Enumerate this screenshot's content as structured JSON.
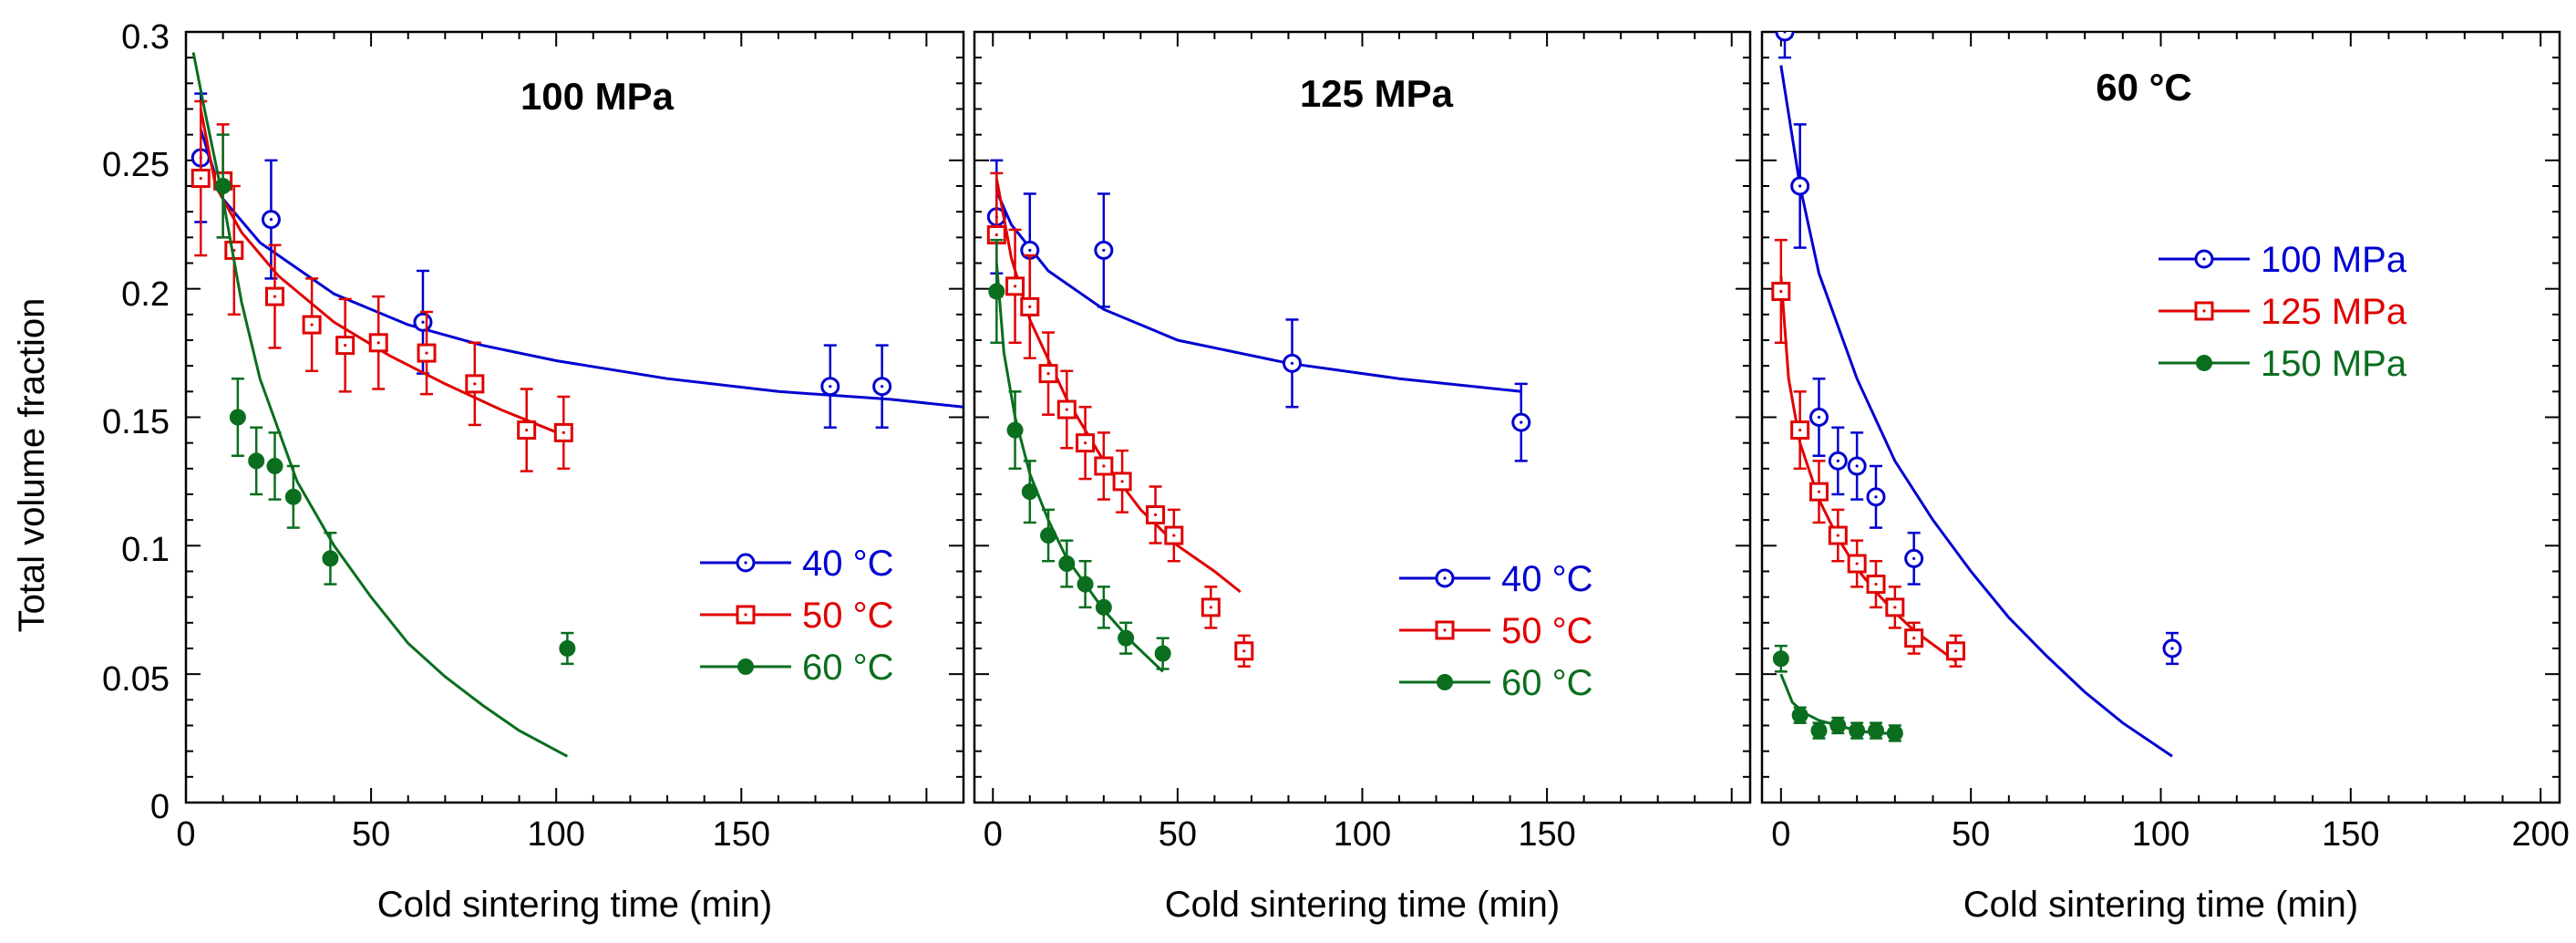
{
  "figure": {
    "ylabel": "Total volume fraction",
    "y_ticks": [
      "0",
      "0.05",
      "0.1",
      "0.15",
      "0.2",
      "0.25",
      "0.3"
    ]
  },
  "chart_data": [
    {
      "type": "scatter",
      "title": "100 MPa",
      "xlabel": "Cold sintering time (min)",
      "ylabel": "Total volume fraction",
      "xlim": [
        0,
        210
      ],
      "ylim": [
        0,
        0.3
      ],
      "x_ticks": [
        "0",
        "50",
        "100",
        "150"
      ],
      "x_tick_values": [
        0,
        50,
        100,
        150
      ],
      "legend": "lower-right",
      "series": [
        {
          "name": "40 °C",
          "color": "#0000d0",
          "marker": "open-circle",
          "points": [
            [
              4,
              0.251,
              0.025
            ],
            [
              23,
              0.227,
              0.023
            ],
            [
              64,
              0.187,
              0.02
            ],
            [
              174,
              0.162,
              0.016
            ],
            [
              188,
              0.162,
              0.016
            ]
          ],
          "fit": [
            [
              4,
              0.262
            ],
            [
              10,
              0.235
            ],
            [
              20,
              0.218
            ],
            [
              40,
              0.198
            ],
            [
              60,
              0.186
            ],
            [
              80,
              0.178
            ],
            [
              100,
              0.172
            ],
            [
              130,
              0.165
            ],
            [
              160,
              0.16
            ],
            [
              190,
              0.157
            ],
            [
              210,
              0.154
            ]
          ]
        },
        {
          "name": "50 °C",
          "color": "#e00000",
          "marker": "open-square",
          "points": [
            [
              4,
              0.243,
              0.03
            ],
            [
              10,
              0.242,
              0.022
            ],
            [
              13,
              0.215,
              0.025
            ],
            [
              24,
              0.197,
              0.02
            ],
            [
              34,
              0.186,
              0.018
            ],
            [
              43,
              0.178,
              0.018
            ],
            [
              52,
              0.179,
              0.018
            ],
            [
              65,
              0.175,
              0.016
            ],
            [
              78,
              0.163,
              0.016
            ],
            [
              92,
              0.145,
              0.016
            ],
            [
              102,
              0.144,
              0.014
            ]
          ],
          "fit": [
            [
              4,
              0.27
            ],
            [
              8,
              0.24
            ],
            [
              15,
              0.222
            ],
            [
              25,
              0.205
            ],
            [
              40,
              0.187
            ],
            [
              55,
              0.174
            ],
            [
              70,
              0.163
            ],
            [
              85,
              0.153
            ],
            [
              102,
              0.143
            ]
          ]
        },
        {
          "name": "60 °C",
          "color": "#0a6e1e",
          "marker": "filled-circle",
          "points": [
            [
              10,
              0.24,
              0.02
            ],
            [
              14,
              0.15,
              0.015
            ],
            [
              19,
              0.133,
              0.013
            ],
            [
              24,
              0.131,
              0.013
            ],
            [
              29,
              0.119,
              0.012
            ],
            [
              39,
              0.095,
              0.01
            ],
            [
              103,
              0.06,
              0.006
            ]
          ],
          "fit": [
            [
              2,
              0.292
            ],
            [
              5,
              0.27
            ],
            [
              10,
              0.235
            ],
            [
              15,
              0.195
            ],
            [
              20,
              0.165
            ],
            [
              30,
              0.125
            ],
            [
              40,
              0.1
            ],
            [
              50,
              0.08
            ],
            [
              60,
              0.062
            ],
            [
              70,
              0.049
            ],
            [
              80,
              0.038
            ],
            [
              90,
              0.028
            ],
            [
              103,
              0.018
            ]
          ]
        }
      ]
    },
    {
      "type": "scatter",
      "title": "125 MPa",
      "xlabel": "Cold sintering time (min)",
      "ylabel": "",
      "xlim": [
        -5,
        205
      ],
      "ylim": [
        0,
        0.3
      ],
      "x_ticks": [
        "0",
        "50",
        "100",
        "150"
      ],
      "x_tick_values": [
        0,
        50,
        100,
        150
      ],
      "legend": "lower-right",
      "series": [
        {
          "name": "40 °C",
          "color": "#0000d0",
          "marker": "open-circle",
          "points": [
            [
              1,
              0.228,
              0.022
            ],
            [
              10,
              0.215,
              0.022
            ],
            [
              30,
              0.215,
              0.022
            ],
            [
              81,
              0.171,
              0.017
            ],
            [
              143,
              0.148,
              0.015
            ]
          ],
          "fit": [
            [
              1,
              0.238
            ],
            [
              5,
              0.225
            ],
            [
              15,
              0.207
            ],
            [
              30,
              0.192
            ],
            [
              50,
              0.18
            ],
            [
              80,
              0.171
            ],
            [
              110,
              0.165
            ],
            [
              143,
              0.16
            ]
          ]
        },
        {
          "name": "50 °C",
          "color": "#e00000",
          "marker": "open-square",
          "points": [
            [
              1,
              0.221,
              0.024
            ],
            [
              6,
              0.201,
              0.022
            ],
            [
              10,
              0.193,
              0.02
            ],
            [
              15,
              0.167,
              0.016
            ],
            [
              20,
              0.153,
              0.015
            ],
            [
              25,
              0.14,
              0.014
            ],
            [
              30,
              0.131,
              0.013
            ],
            [
              35,
              0.125,
              0.012
            ],
            [
              44,
              0.112,
              0.011
            ],
            [
              49,
              0.104,
              0.01
            ],
            [
              59,
              0.076,
              0.008
            ],
            [
              68,
              0.059,
              0.006
            ]
          ],
          "fit": [
            [
              1,
              0.243
            ],
            [
              5,
              0.212
            ],
            [
              10,
              0.188
            ],
            [
              20,
              0.157
            ],
            [
              30,
              0.133
            ],
            [
              40,
              0.114
            ],
            [
              50,
              0.1
            ],
            [
              60,
              0.09
            ],
            [
              67,
              0.082
            ]
          ]
        },
        {
          "name": "60 °C",
          "color": "#0a6e1e",
          "marker": "filled-circle",
          "points": [
            [
              1,
              0.199,
              0.02
            ],
            [
              6,
              0.145,
              0.015
            ],
            [
              10,
              0.121,
              0.012
            ],
            [
              15,
              0.104,
              0.01
            ],
            [
              20,
              0.093,
              0.009
            ],
            [
              25,
              0.085,
              0.009
            ],
            [
              30,
              0.076,
              0.008
            ],
            [
              36,
              0.064,
              0.006
            ],
            [
              46,
              0.058,
              0.006
            ]
          ],
          "fit": [
            [
              1,
              0.21
            ],
            [
              3,
              0.175
            ],
            [
              6,
              0.15
            ],
            [
              10,
              0.128
            ],
            [
              15,
              0.11
            ],
            [
              20,
              0.095
            ],
            [
              25,
              0.085
            ],
            [
              30,
              0.075
            ],
            [
              38,
              0.062
            ],
            [
              46,
              0.051
            ]
          ]
        }
      ]
    },
    {
      "type": "scatter",
      "title": "60 °C",
      "xlabel": "Cold sintering time (min)",
      "ylabel": "",
      "xlim": [
        -5,
        205
      ],
      "ylim": [
        0,
        0.3
      ],
      "x_ticks": [
        "0",
        "50",
        "100",
        "150",
        "200"
      ],
      "x_tick_values": [
        0,
        50,
        100,
        150,
        200
      ],
      "legend": "top-right",
      "series": [
        {
          "name": "100 MPa",
          "color": "#0000d0",
          "marker": "open-circle",
          "points": [
            [
              1,
              0.3,
              0.01
            ],
            [
              5,
              0.24,
              0.024
            ],
            [
              10,
              0.15,
              0.015
            ],
            [
              15,
              0.133,
              0.013
            ],
            [
              20,
              0.131,
              0.013
            ],
            [
              25,
              0.119,
              0.012
            ],
            [
              35,
              0.095,
              0.01
            ],
            [
              103,
              0.06,
              0.006
            ]
          ],
          "fit": [
            [
              0,
              0.287
            ],
            [
              5,
              0.24
            ],
            [
              10,
              0.206
            ],
            [
              20,
              0.165
            ],
            [
              30,
              0.133
            ],
            [
              40,
              0.11
            ],
            [
              50,
              0.09
            ],
            [
              60,
              0.072
            ],
            [
              70,
              0.057
            ],
            [
              80,
              0.043
            ],
            [
              90,
              0.031
            ],
            [
              103,
              0.018
            ]
          ]
        },
        {
          "name": "125 MPa",
          "color": "#e00000",
          "marker": "open-square",
          "points": [
            [
              0,
              0.199,
              0.02
            ],
            [
              5,
              0.145,
              0.015
            ],
            [
              10,
              0.121,
              0.012
            ],
            [
              15,
              0.104,
              0.01
            ],
            [
              20,
              0.093,
              0.009
            ],
            [
              25,
              0.085,
              0.009
            ],
            [
              30,
              0.076,
              0.008
            ],
            [
              35,
              0.064,
              0.006
            ],
            [
              46,
              0.059,
              0.006
            ]
          ],
          "fit": [
            [
              0,
              0.205
            ],
            [
              2,
              0.165
            ],
            [
              5,
              0.14
            ],
            [
              10,
              0.118
            ],
            [
              15,
              0.103
            ],
            [
              20,
              0.091
            ],
            [
              25,
              0.082
            ],
            [
              30,
              0.074
            ],
            [
              35,
              0.067
            ],
            [
              46,
              0.055
            ]
          ]
        },
        {
          "name": "150 MPa",
          "color": "#0a6e1e",
          "marker": "filled-circle",
          "points": [
            [
              0,
              0.056,
              0.005
            ],
            [
              5,
              0.034,
              0.003
            ],
            [
              10,
              0.028,
              0.003
            ],
            [
              15,
              0.03,
              0.003
            ],
            [
              20,
              0.028,
              0.003
            ],
            [
              25,
              0.028,
              0.003
            ],
            [
              30,
              0.027,
              0.003
            ]
          ],
          "fit": [
            [
              0,
              0.05
            ],
            [
              3,
              0.039
            ],
            [
              6,
              0.035
            ],
            [
              10,
              0.032
            ],
            [
              15,
              0.03
            ],
            [
              20,
              0.028
            ],
            [
              25,
              0.027
            ],
            [
              30,
              0.027
            ]
          ]
        }
      ]
    }
  ]
}
